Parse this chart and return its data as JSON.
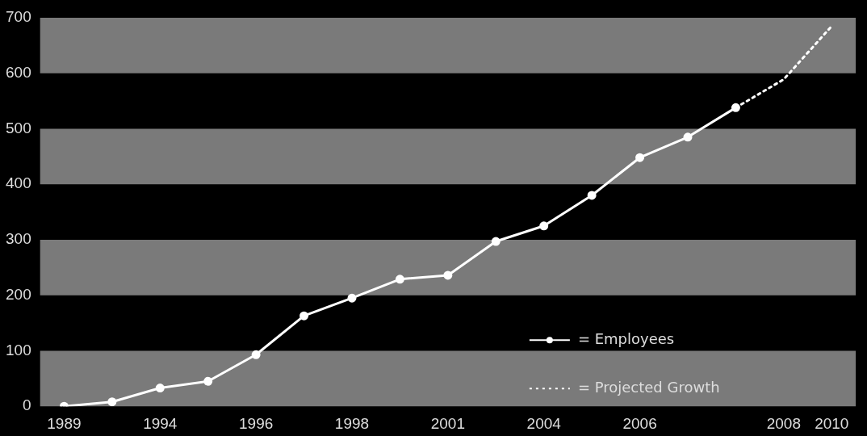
{
  "chart_data": {
    "type": "line",
    "categories": [
      "1989",
      null,
      "1994",
      null,
      "1996",
      null,
      "1998",
      null,
      "2001",
      null,
      "2004",
      null,
      "2006",
      null,
      null,
      "2008",
      "2010"
    ],
    "series": [
      {
        "name": "= Employees",
        "color": "#ffffff",
        "marker": "circle",
        "line_style": "solid",
        "values": [
          0,
          8,
          33,
          45,
          93,
          163,
          195,
          229,
          236,
          297,
          325,
          380,
          448,
          485,
          538,
          null,
          null
        ]
      },
      {
        "name": "= Projected Growth",
        "color": "#ffffff",
        "marker": "none",
        "line_style": "dotted",
        "values": [
          null,
          null,
          null,
          null,
          null,
          null,
          null,
          null,
          null,
          null,
          null,
          null,
          null,
          null,
          538,
          589,
          685
        ]
      }
    ],
    "ylim": [
      0,
      700
    ],
    "yticks": [
      0,
      100,
      200,
      300,
      400,
      500,
      600,
      700
    ],
    "bands": [
      {
        "axis": "y",
        "from": 0,
        "to": 100,
        "color": "#7a7a7a"
      },
      {
        "axis": "y",
        "from": 200,
        "to": 300,
        "color": "#7a7a7a"
      },
      {
        "axis": "y",
        "from": 400,
        "to": 500,
        "color": "#7a7a7a"
      },
      {
        "axis": "y",
        "from": 600,
        "to": 700,
        "color": "#7a7a7a"
      }
    ],
    "legend": "bottom right"
  }
}
